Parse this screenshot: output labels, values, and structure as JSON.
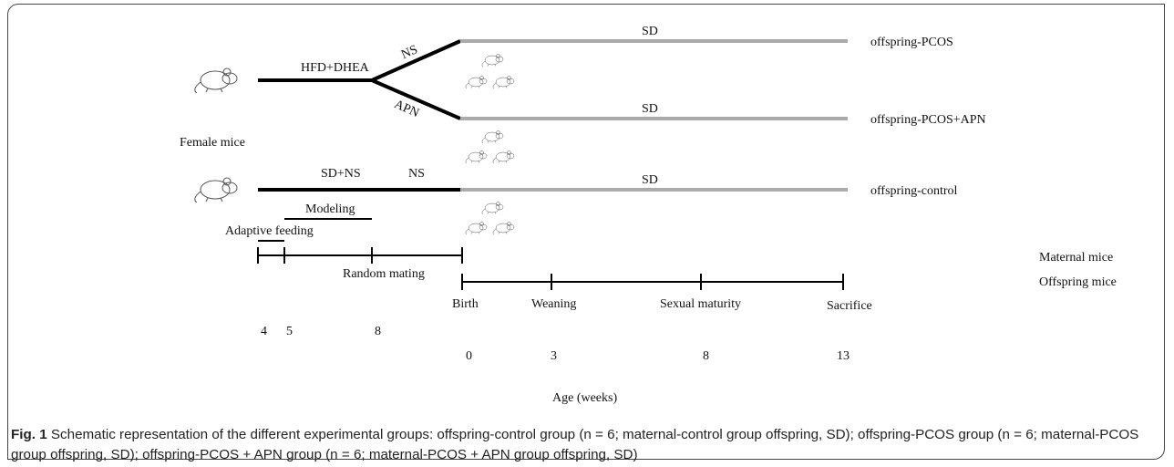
{
  "labels": {
    "female_mice": "Female mice",
    "hfd_dhea": "HFD+DHEA",
    "ns_branch": "NS",
    "apn_branch": "APN",
    "sd_ns": "SD+NS",
    "ns_control": "NS"
  },
  "groups": [
    {
      "diet": "SD",
      "name": "offspring-PCOS"
    },
    {
      "diet": "SD",
      "name": "offspring-PCOS+APN"
    },
    {
      "diet": "SD",
      "name": "offspring-control"
    }
  ],
  "maternal_timeline": {
    "label": "Maternal mice",
    "phases": [
      "Modeling",
      "Adaptive feeding",
      "Random mating"
    ],
    "ticks": [
      4,
      5,
      8
    ]
  },
  "offspring_timeline": {
    "label": "Offspring mice",
    "events": [
      "Birth",
      "Weaning",
      "Sexual maturity",
      "Sacrifice"
    ],
    "ticks": [
      0,
      3,
      8,
      13
    ]
  },
  "axis_label": "Age (weeks)",
  "caption": {
    "label": "Fig. 1",
    "text": "Schematic representation of the different experimental groups: offspring-control group (n = 6; maternal-control group offspring, SD); offspring-PCOS group (n = 6; maternal-PCOS group offspring, SD); offspring-PCOS + APN group (n = 6; maternal-PCOS + APN group offspring, SD)"
  }
}
